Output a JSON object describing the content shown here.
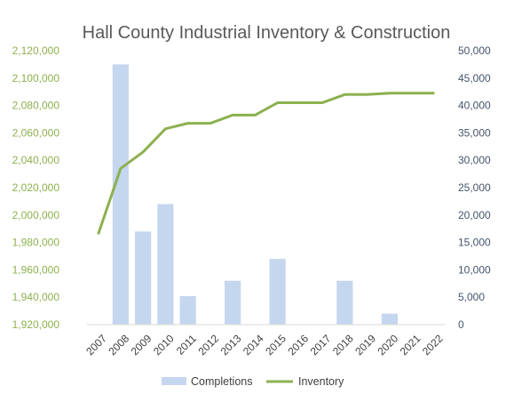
{
  "chart_data": {
    "type": "bar",
    "title": "Hall County Industrial Inventory & Construction",
    "categories": [
      "2007",
      "2008",
      "2009",
      "2010",
      "2011",
      "2012",
      "2013",
      "2014",
      "2015",
      "2016",
      "2017",
      "2018",
      "2019",
      "2020",
      "2021",
      "2022"
    ],
    "series": [
      {
        "name": "Completions",
        "type": "bar",
        "axis": "right",
        "color": "#c5d6ef",
        "values": [
          0,
          47500,
          17000,
          22000,
          5200,
          0,
          8000,
          0,
          12000,
          0,
          0,
          8000,
          0,
          2000,
          0,
          0
        ]
      },
      {
        "name": "Inventory",
        "type": "line",
        "axis": "left",
        "color": "#8db04f",
        "values": [
          1986000,
          2034000,
          2046000,
          2063000,
          2067000,
          2067000,
          2073000,
          2073000,
          2082000,
          2082000,
          2082000,
          2088000,
          2088000,
          2089000,
          2089000,
          2089000
        ]
      }
    ],
    "y_left": {
      "min": 1920000,
      "max": 2120000,
      "step": 20000,
      "ticks": [
        "1,920,000",
        "1,940,000",
        "1,960,000",
        "1,980,000",
        "2,000,000",
        "2,020,000",
        "2,040,000",
        "2,060,000",
        "2,080,000",
        "2,100,000",
        "2,120,000"
      ]
    },
    "y_right": {
      "min": 0,
      "max": 50000,
      "step": 5000,
      "ticks": [
        "0",
        "5,000",
        "10,000",
        "15,000",
        "20,000",
        "25,000",
        "30,000",
        "35,000",
        "40,000",
        "45,000",
        "50,000"
      ]
    },
    "grid": false,
    "legend": "bottom-center",
    "legend_entries": [
      "Completions",
      "Inventory"
    ]
  }
}
